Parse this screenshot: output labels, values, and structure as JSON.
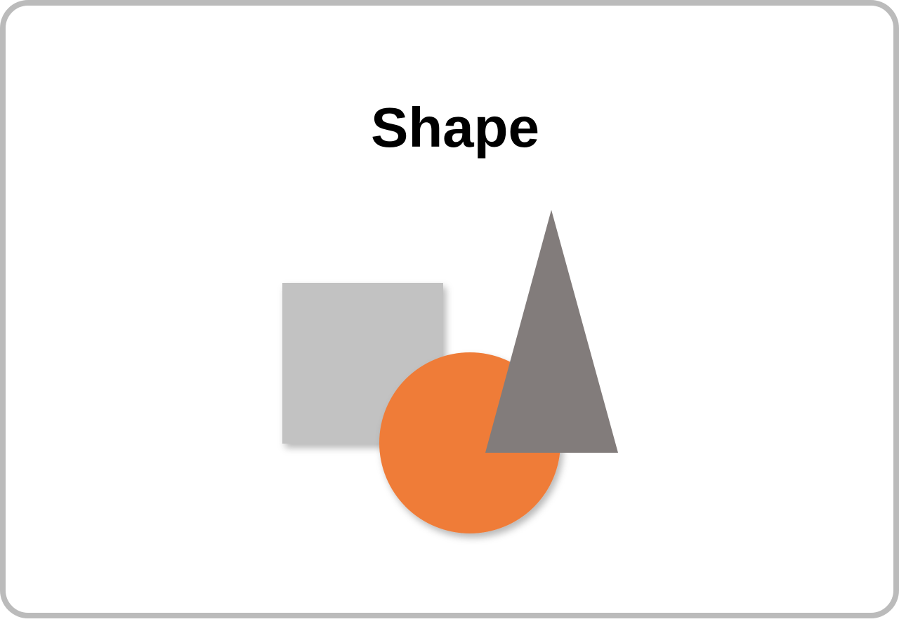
{
  "title": "Shape",
  "shapes": [
    {
      "kind": "square",
      "name": "square-icon",
      "color": "#c2c2c2"
    },
    {
      "kind": "circle",
      "name": "circle-icon",
      "color": "#ef7c39"
    },
    {
      "kind": "triangle",
      "name": "triangle-icon",
      "color": "#827c7b"
    }
  ],
  "colors": {
    "border": "#bbbbbb",
    "background": "#ffffff",
    "title": "#000000"
  }
}
